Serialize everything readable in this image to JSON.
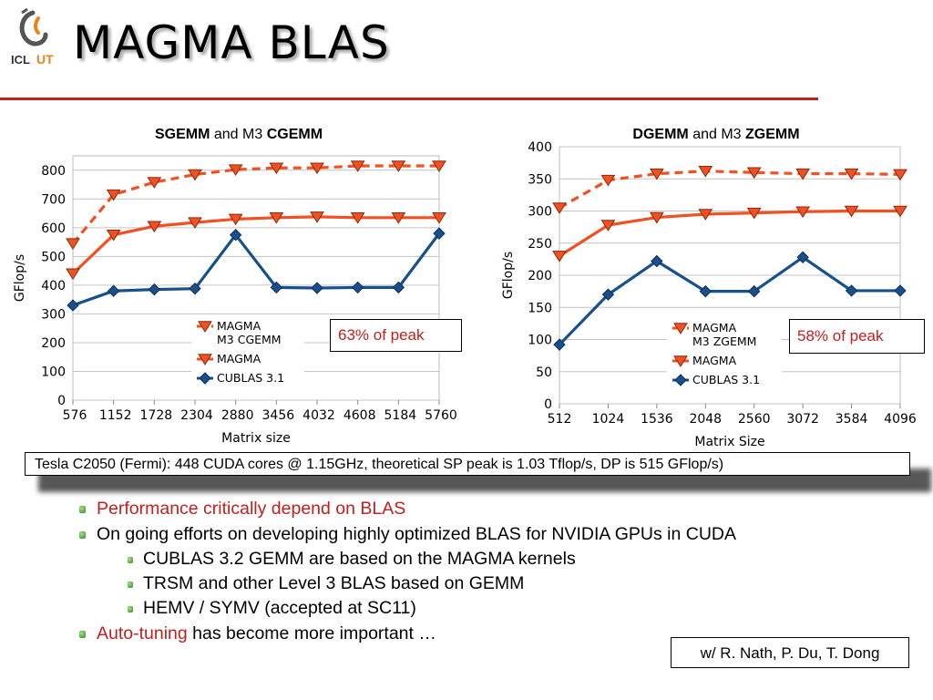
{
  "slide": {
    "title": "MAGMA BLAS",
    "logo_text": "ICL UT",
    "spec": "Tesla C2050 (Fermi): 448 CUDA cores @ 1.15GHz, theoretical SP peak is 1.03 Tflop/s, DP is 515 GFlop/s)",
    "credit": "w/ R. Nath, P. Du, T. Dong",
    "colors": {
      "accent_red": "#c0201e",
      "magma_orange": "#f05022",
      "cublas_blue": "#17508c"
    }
  },
  "bullets": [
    {
      "level": 1,
      "parts": [
        {
          "text": "Performance critically depend on BLAS",
          "color": "red"
        }
      ]
    },
    {
      "level": 1,
      "parts": [
        {
          "text": "On going efforts on developing highly optimized BLAS for NVIDIA GPUs in CUDA"
        }
      ]
    },
    {
      "level": 2,
      "parts": [
        {
          "text": "CUBLAS 3.2 GEMM are based on the MAGMA kernels"
        }
      ]
    },
    {
      "level": 2,
      "parts": [
        {
          "text": "TRSM and other Level 3 BLAS based on GEMM"
        }
      ]
    },
    {
      "level": 2,
      "parts": [
        {
          "text": "HEMV / SYMV (accepted at SC11)"
        }
      ]
    },
    {
      "level": 1,
      "parts": [
        {
          "text": "Auto-tuning",
          "color": "red"
        },
        {
          "text": " has become more important …"
        }
      ]
    }
  ],
  "chart_data": [
    {
      "type": "line",
      "title_parts": [
        {
          "text": "SGEMM",
          "bold": true
        },
        {
          "text": " and M3 "
        },
        {
          "text": "CGEMM",
          "bold": true
        }
      ],
      "xlabel": "Matrix size",
      "ylabel": "GFlop/s",
      "x": [
        576,
        1152,
        1728,
        2304,
        2880,
        3456,
        4032,
        4608,
        5184,
        5760
      ],
      "xtick_labels": [
        "576",
        "1152",
        "1728",
        "2304",
        "2880",
        "3456",
        "4032",
        "4608",
        "5184",
        "5760"
      ],
      "ylim": [
        0,
        850
      ],
      "yticks": [
        0,
        100,
        200,
        300,
        400,
        500,
        600,
        700,
        800
      ],
      "grid": "horizontal",
      "legend": "inside lower middle",
      "series": [
        {
          "name": "MAGMA M3 CGEMM",
          "legend_lines": [
            "MAGMA",
            "M3 CGEMM"
          ],
          "style": "dashed",
          "marker": "triangle-down",
          "color": "#f05022",
          "values": [
            545,
            715,
            758,
            785,
            802,
            808,
            808,
            815,
            815,
            815
          ]
        },
        {
          "name": "MAGMA",
          "legend_lines": [
            "MAGMA"
          ],
          "style": "solid",
          "marker": "triangle-down",
          "color": "#f05022",
          "values": [
            440,
            575,
            605,
            618,
            630,
            635,
            638,
            635,
            635,
            635
          ]
        },
        {
          "name": "CUBLAS 3.1",
          "legend_lines": [
            "CUBLAS 3.1"
          ],
          "style": "solid",
          "marker": "diamond",
          "color": "#17508c",
          "values": [
            330,
            380,
            385,
            388,
            575,
            392,
            390,
            392,
            392,
            580
          ]
        }
      ],
      "annotation": "63% of peak"
    },
    {
      "type": "line",
      "title_parts": [
        {
          "text": "DGEMM",
          "bold": true
        },
        {
          "text": " and M3 "
        },
        {
          "text": "ZGEMM",
          "bold": true
        }
      ],
      "xlabel": "Matrix Size",
      "ylabel": "GFlop/s",
      "x": [
        512,
        1024,
        1536,
        2048,
        2560,
        3072,
        3584,
        4096
      ],
      "xtick_labels": [
        "512",
        "1024",
        "1536",
        "2048",
        "2560",
        "3072",
        "3584",
        "4096"
      ],
      "ylim": [
        0,
        400
      ],
      "yticks": [
        0,
        50,
        100,
        150,
        200,
        250,
        300,
        350,
        400
      ],
      "grid": "horizontal",
      "legend": "inside lower middle",
      "series": [
        {
          "name": "MAGMA M3 ZGEMM",
          "legend_lines": [
            "MAGMA",
            "M3 ZGEMM"
          ],
          "style": "dashed",
          "marker": "triangle-down",
          "color": "#f05022",
          "values": [
            305,
            348,
            358,
            362,
            360,
            358,
            358,
            357
          ]
        },
        {
          "name": "MAGMA",
          "legend_lines": [
            "MAGMA"
          ],
          "style": "solid",
          "marker": "triangle-down",
          "color": "#f05022",
          "values": [
            230,
            278,
            290,
            295,
            297,
            299,
            300,
            300
          ]
        },
        {
          "name": "CUBLAS 3.1",
          "legend_lines": [
            "CUBLAS 3.1"
          ],
          "style": "solid",
          "marker": "diamond",
          "color": "#17508c",
          "values": [
            92,
            170,
            222,
            175,
            175,
            228,
            176,
            176
          ]
        }
      ],
      "annotation": "58% of peak"
    }
  ]
}
